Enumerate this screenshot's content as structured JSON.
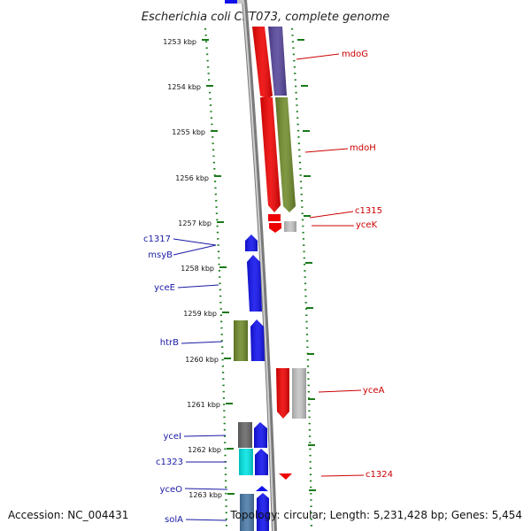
{
  "title": "Escherichia coli CFT073, complete genome",
  "footer": {
    "accession": "Accession: NC_004431",
    "summary": "Topology: circular; Length: 5,231,428 bp; Genes: 5,454"
  },
  "ruler_ticks": [
    "1253 kbp",
    "1254 kbp",
    "1255 kbp",
    "1256 kbp",
    "1257 kbp",
    "1258 kbp",
    "1259 kbp",
    "1260 kbp",
    "1261 kbp",
    "1262 kbp",
    "1263 kbp"
  ],
  "genes_forward": [
    "mdoG",
    "mdoH",
    "c1315",
    "yceK",
    "yceA",
    "c1324"
  ],
  "genes_reverse": [
    "c1317",
    "msyB",
    "yceE",
    "htrB",
    "yceI",
    "c1323",
    "yceO",
    "solA"
  ],
  "colors": {
    "forward_label": "#cc0000",
    "reverse_label": "#1a1aa6",
    "tick": "#1a7a1a",
    "backbone": "#888888",
    "red": "#ee0000",
    "blue": "#1010ee",
    "purple": "#55449a",
    "olive": "#6f8a2a",
    "gray": "#c4c4c4",
    "darkgray": "#666666",
    "cyan": "#00e5e5",
    "steel": "#4a7aa8"
  }
}
